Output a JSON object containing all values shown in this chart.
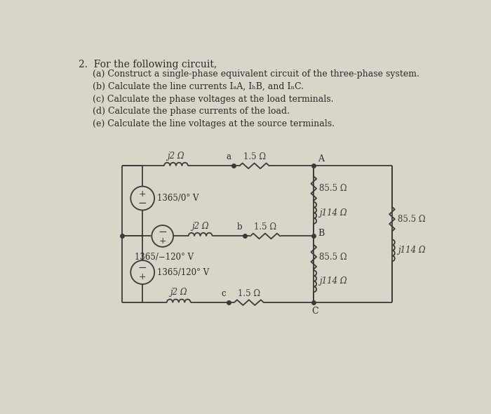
{
  "background_color": "#d9d5c8",
  "title_text": "2.  For the following circuit,",
  "items": [
    "(a) Construct a single-phase equivalent circuit of the three-phase system.",
    "(b) Calculate the line currents IₐA, IₕB, and IₙC.",
    "(c) Calculate the phase voltages at the load terminals.",
    "(d) Calculate the phase currents of the load.",
    "(e) Calculate the line voltages at the source terminals."
  ],
  "source1_label": "1365/0° V",
  "source2_label": "1365/−120° V",
  "source3_label": "1365/120° V",
  "ind1": "j2 Ω",
  "ind2": "j2 Ω",
  "ind3": "j2 Ω",
  "res_a": "1.5 Ω",
  "res_b": "1.5 Ω",
  "res_c": "1.5 Ω",
  "load_r1": "85.5 Ω",
  "load_r2": "85.5 Ω",
  "load_r_right": "85.5 Ω",
  "load_l1": "j114 Ω",
  "load_l2": "j114 Ω",
  "load_l_right": "j114 Ω",
  "node_A": "A",
  "node_B": "B",
  "node_C": "C",
  "node_a": "a",
  "node_b": "b",
  "node_c": "c",
  "wire_color": "#3a3a3a",
  "component_color": "#3a3a3a",
  "text_color": "#2a2a2a"
}
